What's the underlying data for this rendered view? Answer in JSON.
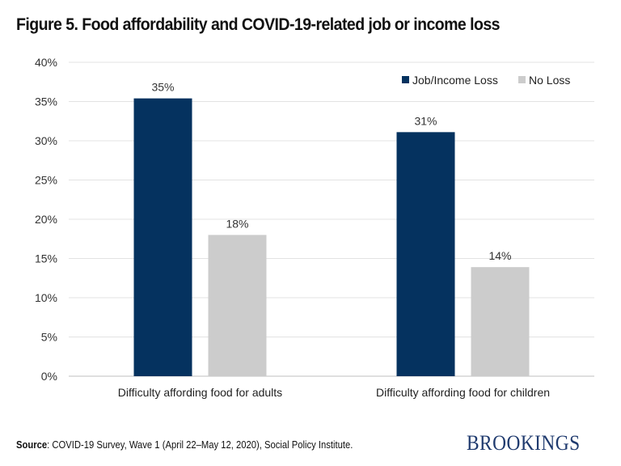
{
  "title": "Figure 5. Food affordability and COVID-19-related job or income loss",
  "chart_data": {
    "type": "bar",
    "categories": [
      "Difficulty affording food for adults",
      "Difficulty affording food for children"
    ],
    "series": [
      {
        "name": "Job/Income Loss",
        "values": [
          35.4,
          31.1
        ],
        "labels": [
          "35%",
          "31%"
        ],
        "color": "#05325f"
      },
      {
        "name": "No Loss",
        "values": [
          18.0,
          13.9
        ],
        "labels": [
          "18%",
          "14%"
        ],
        "color": "#cccccc"
      }
    ],
    "ylim": [
      0,
      40
    ],
    "yticks": [
      0,
      5,
      10,
      15,
      20,
      25,
      30,
      35,
      40
    ],
    "ytick_labels": [
      "0%",
      "5%",
      "10%",
      "15%",
      "20%",
      "25%",
      "30%",
      "35%",
      "40%"
    ],
    "grid": true,
    "legend_placement": "top-right"
  },
  "footer": {
    "source_label": "Source",
    "source_text": ": COVID-19 Survey, Wave 1 (April 22–May 12, 2020), Social Policy Institute.",
    "logo": "BROOKINGS"
  }
}
